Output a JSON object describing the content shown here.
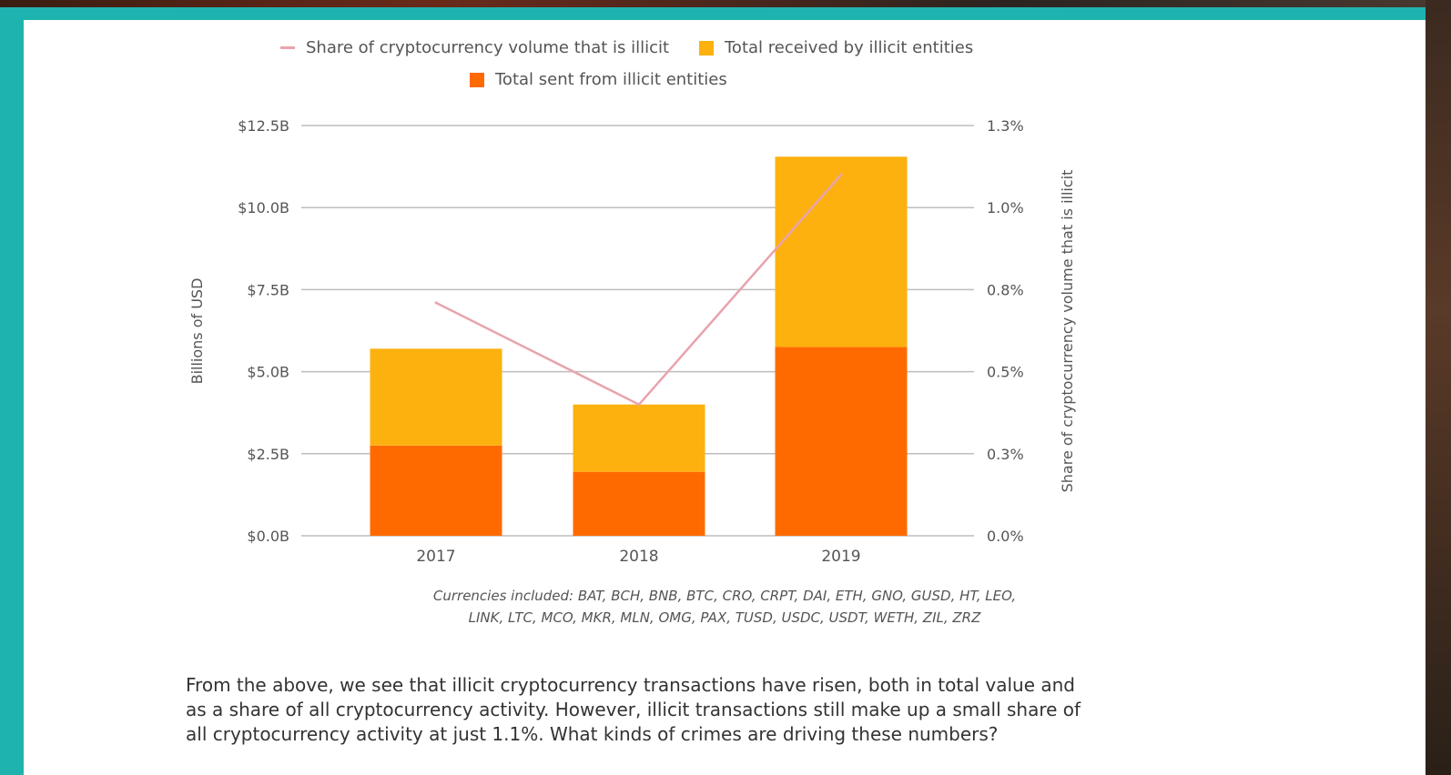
{
  "legend": {
    "line_label": "Share of cryptocurrency volume that is illicit",
    "received_label": "Total received by illicit entities",
    "sent_label": "Total sent from illicit entities"
  },
  "colors": {
    "received": "#FDB10F",
    "sent": "#FF6A00",
    "line": "#E9A3AD",
    "frame": "#1FB3B0"
  },
  "chart_data": {
    "type": "bar",
    "stacked": true,
    "categories": [
      "2017",
      "2018",
      "2019"
    ],
    "series": [
      {
        "name": "Total sent from illicit entities",
        "values": [
          2.75,
          1.95,
          5.75
        ]
      },
      {
        "name": "Total received by illicit entities",
        "values": [
          2.95,
          2.05,
          5.8
        ]
      }
    ],
    "line_series": {
      "name": "Share of cryptocurrency volume that is illicit",
      "values": [
        0.71,
        0.4,
        1.1
      ]
    },
    "ylabel": "Billions of USD",
    "y2label": "Share of cryptocurrency volume that is illicit",
    "ylim": [
      0,
      12.5
    ],
    "y2lim": [
      0,
      1.25
    ],
    "yticks": [
      "$0.0B",
      "$2.5B",
      "$5.0B",
      "$7.5B",
      "$10.0B",
      "$12.5B"
    ],
    "y2ticks": [
      "0.0%",
      "0.3%",
      "0.5%",
      "0.8%",
      "1.0%",
      "1.3%"
    ],
    "grid": true,
    "legend_position": "top"
  },
  "caption": {
    "line1": "Currencies included: BAT, BCH, BNB, BTC, CRO, CRPT, DAI, ETH, GNO, GUSD, HT, LEO,",
    "line2": "LINK, LTC, MCO, MKR, MLN, OMG, PAX, TUSD, USDC, USDT, WETH, ZIL, ZRZ"
  },
  "body_text": "From the above, we see that illicit cryptocurrency transactions have risen, both in total value and as a share of all cryptocurrency activity. However, illicit transactions still make up a small share of all cryptocurrency activity at just 1.1%. What kinds of crimes are driving these numbers?"
}
